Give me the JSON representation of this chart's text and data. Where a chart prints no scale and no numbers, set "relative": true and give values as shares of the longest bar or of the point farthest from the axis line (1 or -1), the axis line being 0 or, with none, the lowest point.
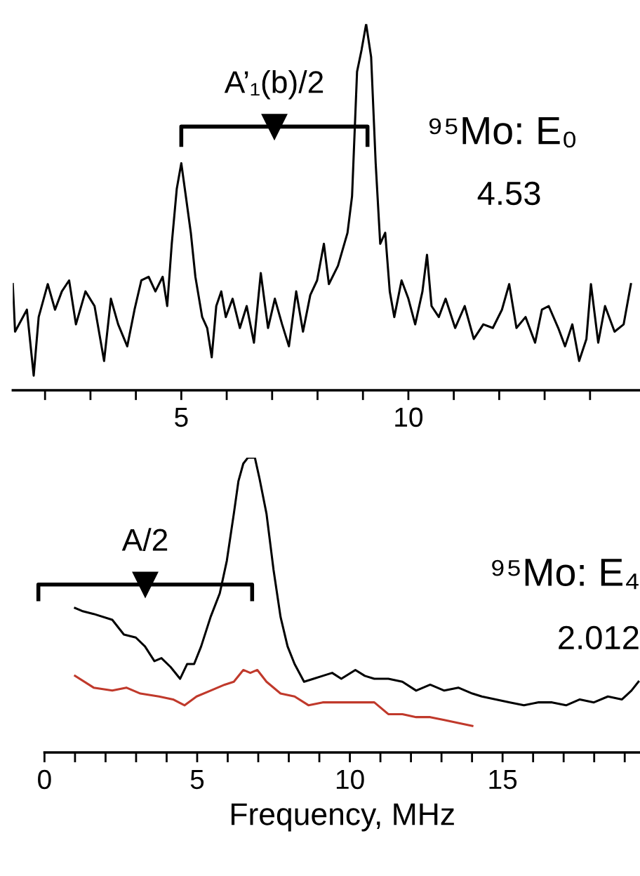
{
  "chart_data": [
    {
      "type": "line",
      "relative": true,
      "xlim": [
        1.29,
        15.1
      ],
      "xticks": [
        {
          "value": 2,
          "label": null
        },
        {
          "value": 3,
          "label": null
        },
        {
          "value": 4,
          "label": null
        },
        5,
        {
          "value": 6,
          "label": null
        },
        {
          "value": 7,
          "label": null
        },
        {
          "value": 8,
          "label": null
        },
        {
          "value": 9,
          "label": null
        },
        10,
        {
          "value": 11,
          "label": null
        },
        {
          "value": 12,
          "label": null
        },
        {
          "value": 13,
          "label": null
        },
        {
          "value": 14,
          "label": null
        }
      ],
      "tick_labels": "x",
      "grid": false,
      "legend": false,
      "annotations": [
        {
          "text": "A’₁(b)/2",
          "x": 7.05,
          "y": 0.72
        },
        "⁹⁵Mo: E₀",
        "4.53"
      ],
      "series": [
        {
          "color": "#000000",
          "x": [
            1.29,
            1.34,
            1.6,
            1.75,
            1.86,
            2.06,
            2.22,
            2.37,
            2.53,
            2.68,
            2.89,
            3.09,
            3.3,
            3.45,
            3.61,
            3.81,
            3.97,
            4.12,
            4.28,
            4.43,
            4.59,
            4.69,
            4.79,
            4.9,
            5.0,
            5.1,
            5.21,
            5.31,
            5.46,
            5.57,
            5.67,
            5.77,
            5.88,
            5.98,
            6.13,
            6.29,
            6.44,
            6.6,
            6.75,
            6.91,
            7.06,
            7.22,
            7.37,
            7.53,
            7.68,
            7.84,
            7.99,
            8.14,
            8.25,
            8.45,
            8.66,
            8.76,
            8.87,
            8.97,
            9.07,
            9.18,
            9.28,
            9.38,
            9.49,
            9.59,
            9.69,
            9.85,
            10.0,
            10.15,
            10.31,
            10.41,
            10.51,
            10.67,
            10.82,
            11.03,
            11.24,
            11.44,
            11.65,
            11.86,
            12.06,
            12.22,
            12.38,
            12.58,
            12.79,
            12.94,
            13.09,
            13.3,
            13.45,
            13.61,
            13.76,
            13.92,
            14.02,
            14.18,
            14.33,
            14.54,
            14.74,
            14.9
          ],
          "values": [
            0.29,
            0.16,
            0.22,
            0.04,
            0.2,
            0.29,
            0.22,
            0.27,
            0.3,
            0.18,
            0.27,
            0.23,
            0.08,
            0.25,
            0.18,
            0.12,
            0.22,
            0.3,
            0.31,
            0.27,
            0.31,
            0.23,
            0.4,
            0.55,
            0.62,
            0.53,
            0.43,
            0.31,
            0.2,
            0.17,
            0.09,
            0.23,
            0.27,
            0.2,
            0.25,
            0.17,
            0.23,
            0.13,
            0.32,
            0.17,
            0.25,
            0.18,
            0.12,
            0.27,
            0.16,
            0.26,
            0.3,
            0.4,
            0.29,
            0.34,
            0.43,
            0.53,
            0.87,
            0.93,
            1.0,
            0.91,
            0.62,
            0.4,
            0.43,
            0.27,
            0.2,
            0.3,
            0.25,
            0.18,
            0.27,
            0.37,
            0.23,
            0.2,
            0.25,
            0.17,
            0.23,
            0.14,
            0.18,
            0.17,
            0.22,
            0.29,
            0.17,
            0.2,
            0.13,
            0.22,
            0.23,
            0.17,
            0.12,
            0.18,
            0.08,
            0.14,
            0.29,
            0.13,
            0.23,
            0.16,
            0.18,
            0.29
          ]
        }
      ]
    },
    {
      "type": "line",
      "relative": true,
      "xlim": [
        0,
        19.5
      ],
      "xticks": [
        0,
        {
          "value": 1,
          "label": null
        },
        {
          "value": 2,
          "label": null
        },
        {
          "value": 3,
          "label": null
        },
        {
          "value": 4,
          "label": null
        },
        5,
        {
          "value": 6,
          "label": null
        },
        {
          "value": 7,
          "label": null
        },
        {
          "value": 8,
          "label": null
        },
        {
          "value": 9,
          "label": null
        },
        10,
        {
          "value": 11,
          "label": null
        },
        {
          "value": 12,
          "label": null
        },
        {
          "value": 13,
          "label": null
        },
        {
          "value": 14,
          "label": null
        },
        15,
        {
          "value": 16,
          "label": null
        },
        {
          "value": 17,
          "label": null
        },
        {
          "value": 18,
          "label": null
        },
        {
          "value": 19,
          "label": null
        }
      ],
      "xlabel": "Frequency, MHz",
      "tick_labels": "x",
      "grid": false,
      "legend": false,
      "annotations": [
        {
          "text": "A/2",
          "x": 3.3,
          "y": 0.57
        },
        "⁹⁵Mo: E₄",
        "2.012"
      ],
      "series": [
        {
          "color": "#000000",
          "x": [
            1.0,
            1.23,
            1.61,
            2.22,
            2.6,
            2.99,
            3.29,
            3.6,
            3.83,
            4.13,
            4.44,
            4.67,
            4.9,
            5.13,
            5.44,
            5.74,
            5.97,
            6.2,
            6.35,
            6.51,
            6.66,
            6.89,
            7.04,
            7.27,
            7.5,
            7.73,
            7.96,
            8.19,
            8.5,
            8.81,
            9.11,
            9.42,
            9.72,
            10.18,
            10.49,
            10.8,
            11.26,
            11.72,
            12.17,
            12.63,
            13.09,
            13.55,
            14.01,
            14.32,
            14.78,
            15.24,
            15.7,
            16.16,
            16.62,
            17.08,
            17.53,
            17.99,
            18.45,
            18.91,
            19.22,
            19.45
          ],
          "values": [
            0.49,
            0.48,
            0.47,
            0.45,
            0.4,
            0.39,
            0.36,
            0.31,
            0.32,
            0.29,
            0.25,
            0.3,
            0.3,
            0.36,
            0.46,
            0.54,
            0.65,
            0.81,
            0.92,
            0.98,
            1.0,
            1.0,
            0.93,
            0.81,
            0.62,
            0.46,
            0.36,
            0.3,
            0.24,
            0.25,
            0.26,
            0.27,
            0.25,
            0.28,
            0.26,
            0.25,
            0.25,
            0.24,
            0.21,
            0.23,
            0.21,
            0.22,
            0.2,
            0.19,
            0.18,
            0.17,
            0.16,
            0.17,
            0.17,
            0.16,
            0.18,
            0.17,
            0.19,
            0.18,
            0.21,
            0.24
          ]
        },
        {
          "color": "#c0392b",
          "x": [
            1.0,
            1.61,
            2.22,
            2.68,
            3.14,
            3.75,
            4.21,
            4.59,
            4.98,
            5.44,
            5.9,
            6.2,
            6.51,
            6.74,
            6.97,
            7.27,
            7.73,
            8.19,
            8.65,
            9.11,
            9.57,
            10.18,
            10.8,
            11.26,
            11.72,
            12.17,
            12.63,
            13.09,
            13.55,
            14.01
          ],
          "values": [
            0.26,
            0.22,
            0.21,
            0.22,
            0.2,
            0.19,
            0.18,
            0.16,
            0.19,
            0.21,
            0.23,
            0.24,
            0.28,
            0.27,
            0.28,
            0.24,
            0.2,
            0.19,
            0.16,
            0.17,
            0.17,
            0.17,
            0.17,
            0.13,
            0.13,
            0.12,
            0.12,
            0.11,
            0.1,
            0.09
          ]
        }
      ]
    }
  ]
}
